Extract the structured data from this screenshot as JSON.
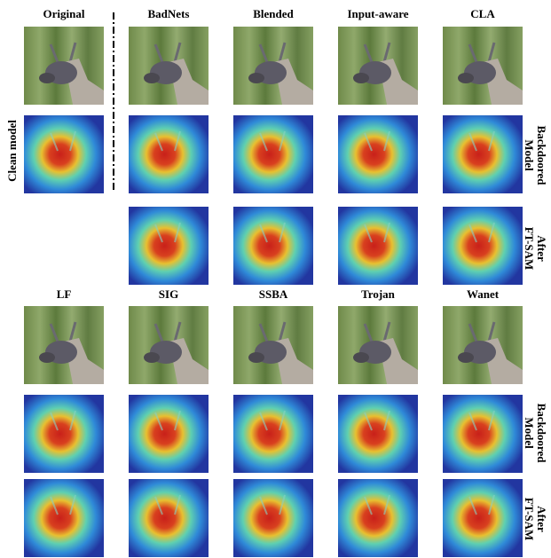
{
  "top_labels": [
    "Original",
    "BadNets",
    "Blended",
    "Input-aware",
    "CLA"
  ],
  "bottom_labels": [
    "LF",
    "SIG",
    "SSBA",
    "Trojan",
    "Wanet"
  ],
  "side_labels": {
    "clean_model": "Clean model",
    "backdoored_model": [
      "Backdoored",
      "Model"
    ],
    "after_ft_sam": [
      "After",
      "FT-SAM"
    ]
  }
}
